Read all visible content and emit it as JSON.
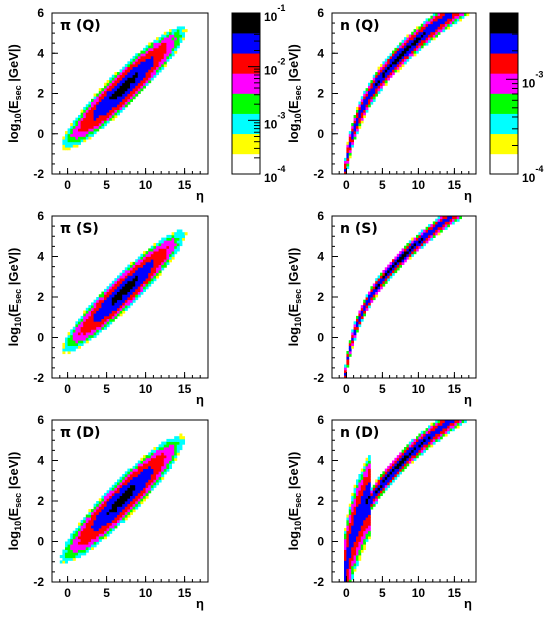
{
  "colors": {
    "palette": [
      "#ffffff",
      "#ffff00",
      "#00ffff",
      "#00ff00",
      "#ff00ff",
      "#ff0000",
      "#0000ff",
      "#000000"
    ],
    "frame": "#000000"
  },
  "colorbars": [
    {
      "panel": "left",
      "labels": [
        {
          "base": "10",
          "exp": "-1",
          "log": -1
        },
        {
          "base": "10",
          "exp": "-2",
          "log": -2
        },
        {
          "base": "10",
          "exp": "-3",
          "log": -3
        },
        {
          "base": "10",
          "exp": "-4",
          "log": -4
        }
      ],
      "range": [
        -4,
        -1
      ]
    },
    {
      "panel": "right",
      "labels": [
        {
          "base": "10",
          "exp": "-3",
          "log": -3
        },
        {
          "base": "10",
          "exp": "-4",
          "log": -4
        }
      ],
      "range": [
        -4,
        -2.3
      ]
    }
  ],
  "chart_data": [
    {
      "type": "heatmap",
      "label": "π (Q)",
      "xlabel": "η",
      "ylabel": "log10(Esec |GeV|)",
      "xlim": [
        -2,
        18
      ],
      "ylim": [
        -2,
        6
      ],
      "xticks": [
        0,
        5,
        10,
        15
      ],
      "yticks": [
        -2,
        0,
        2,
        4,
        6
      ],
      "model": {
        "kind": "pion",
        "x_range": [
          -0.8,
          15.2
        ],
        "y_at_x0": -0.3,
        "slope": 0.36,
        "width": 0.55
      }
    },
    {
      "type": "heatmap",
      "label": "n (Q)",
      "xlabel": "η",
      "ylabel": "log10(Esec |GeV|)",
      "xlim": [
        -2,
        18
      ],
      "ylim": [
        -2,
        6
      ],
      "xticks": [
        0,
        5,
        10,
        15
      ],
      "yticks": [
        -2,
        0,
        2,
        4,
        6
      ],
      "model": {
        "kind": "neutron",
        "x_range": [
          0,
          17.5
        ],
        "width": 0.38
      }
    },
    {
      "type": "heatmap",
      "label": "π (S)",
      "xlabel": "η",
      "ylabel": "log10(Esec |GeV|)",
      "xlim": [
        -2,
        18
      ],
      "ylim": [
        -2,
        6
      ],
      "xticks": [
        0,
        5,
        10,
        15
      ],
      "yticks": [
        -2,
        0,
        2,
        4,
        6
      ],
      "model": {
        "kind": "pion",
        "x_range": [
          -0.8,
          15.2
        ],
        "y_at_x0": -0.3,
        "slope": 0.36,
        "width": 0.52
      }
    },
    {
      "type": "heatmap",
      "label": "n (S)",
      "xlabel": "η",
      "ylabel": "log10(Esec |GeV|)",
      "xlim": [
        -2,
        18
      ],
      "ylim": [
        -2,
        6
      ],
      "xticks": [
        0,
        5,
        10,
        15
      ],
      "yticks": [
        -2,
        0,
        2,
        4,
        6
      ],
      "model": {
        "kind": "neutron",
        "x_range": [
          0,
          17.5
        ],
        "width": 0.25
      }
    },
    {
      "type": "heatmap",
      "label": "π (D)",
      "xlabel": "η",
      "ylabel": "log10(Esec |GeV|)",
      "xlim": [
        -2,
        18
      ],
      "ylim": [
        -2,
        6
      ],
      "xticks": [
        0,
        5,
        10,
        15
      ],
      "yticks": [
        -2,
        0,
        2,
        4,
        6
      ],
      "model": {
        "kind": "pion",
        "x_range": [
          -1.0,
          15.0
        ],
        "y_at_x0": -0.5,
        "slope": 0.37,
        "width": 0.58
      }
    },
    {
      "type": "heatmap",
      "label": "n (D)",
      "xlabel": "η",
      "ylabel": "log10(Esec |GeV|)",
      "xlim": [
        -2,
        18
      ],
      "ylim": [
        -2,
        6
      ],
      "xticks": [
        0,
        5,
        10,
        15
      ],
      "yticks": [
        -2,
        0,
        2,
        4,
        6
      ],
      "model": {
        "kind": "neutron-diffractive",
        "x_range": [
          0,
          17.5
        ],
        "width": 0.33
      }
    }
  ]
}
